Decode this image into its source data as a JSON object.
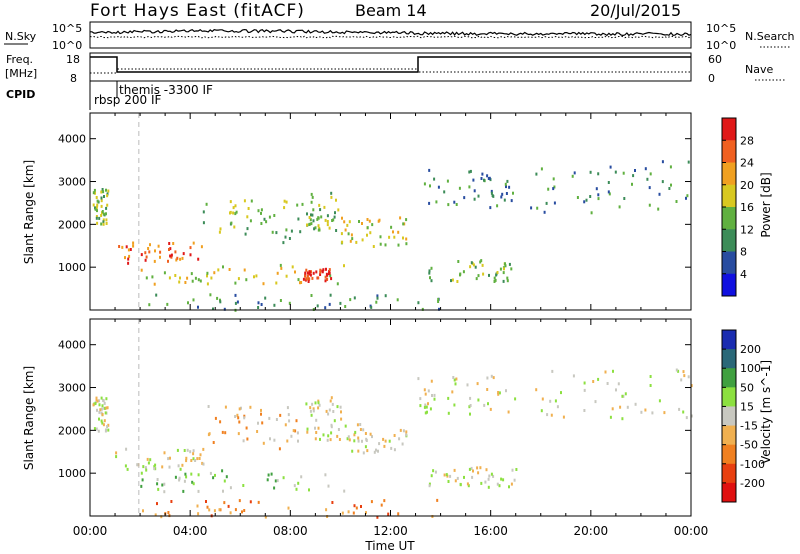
{
  "header": {
    "title": "Fort Hays East (fitACF)",
    "beam": "Beam 14",
    "date": "20/Jul/2015"
  },
  "panels": {
    "noise": {
      "left_label": "N.Sky",
      "right_label": "N.Search",
      "left_ticks": [
        "10^5",
        "10^0"
      ],
      "right_ticks": [
        "10^5",
        "10^0"
      ]
    },
    "freq": {
      "left_label_1": "Freq.",
      "left_label_2": "[MHz]",
      "right_label": "Nave",
      "left_ticks": [
        "18",
        "8"
      ],
      "right_ticks": [
        "60",
        "0"
      ]
    },
    "cpid": {
      "label": "CPID",
      "entries": [
        "rbsp 200 IF",
        "themis -3300 IF"
      ]
    }
  },
  "colorbars": {
    "power": {
      "label": "Power [dB]",
      "ticks": [
        "28",
        "24",
        "20",
        "16",
        "12",
        "8",
        "4"
      ],
      "colors": [
        "#e01818",
        "#f06020",
        "#f0a020",
        "#d8c820",
        "#60b040",
        "#3c8c58",
        "#284ca0",
        "#1010e0"
      ]
    },
    "velocity": {
      "label": "Velocity [m s^-1]",
      "ticks": [
        "200",
        "100",
        "50",
        "15",
        "-15",
        "-50",
        "-100",
        "-200"
      ],
      "colors": [
        "#1a2cb0",
        "#2a6878",
        "#40a040",
        "#8ce040",
        "#c8c8c0",
        "#f0b050",
        "#f08020",
        "#e84010",
        "#e01010"
      ]
    }
  },
  "chart_data": [
    {
      "type": "scatter",
      "name": "power_panel",
      "ylabel": "Slant Range [km]",
      "xlabel": "",
      "xlim": [
        0,
        24
      ],
      "ylim": [
        0,
        4600
      ],
      "yticks": [
        1000,
        2000,
        3000,
        4000
      ],
      "ytick_labels": [
        "1000",
        "2000",
        "3000",
        "4000"
      ],
      "dashed_marker_hour": 1.95,
      "echo_bands": [
        {
          "t0": 0.1,
          "t1": 0.7,
          "r0": 2000,
          "r1": 2850,
          "level": 3
        },
        {
          "t0": 1.0,
          "t1": 4.5,
          "r0": 1100,
          "r1": 1600,
          "level": 6
        },
        {
          "t0": 2.0,
          "t1": 10.2,
          "r0": 600,
          "r1": 1100,
          "level": 4
        },
        {
          "t0": 4.5,
          "t1": 8.5,
          "r0": 1600,
          "r1": 2600,
          "level": 3
        },
        {
          "t0": 8.5,
          "t1": 9.6,
          "r0": 700,
          "r1": 1000,
          "level": 7
        },
        {
          "t0": 8.6,
          "t1": 10.0,
          "r0": 1800,
          "r1": 2800,
          "level": 3
        },
        {
          "t0": 10.0,
          "t1": 12.6,
          "r0": 1500,
          "r1": 2200,
          "level": 4
        },
        {
          "t0": 13.0,
          "t1": 17.0,
          "r0": 2400,
          "r1": 3300,
          "level": 2
        },
        {
          "t0": 13.5,
          "t1": 17.0,
          "r0": 700,
          "r1": 1200,
          "level": 3
        },
        {
          "t0": 17.5,
          "t1": 24.0,
          "r0": 2300,
          "r1": 3500,
          "level": 2
        },
        {
          "t0": 2.0,
          "t1": 14.0,
          "r0": 0,
          "r1": 400,
          "level": 2
        }
      ]
    },
    {
      "type": "scatter",
      "name": "velocity_panel",
      "ylabel": "Slant Range [km]",
      "xlabel": "Time UT",
      "xlim": [
        0,
        24
      ],
      "ylim": [
        0,
        4600
      ],
      "xticks": [
        0,
        4,
        8,
        12,
        16,
        20,
        24
      ],
      "xtick_labels": [
        "00:00",
        "04:00",
        "08:00",
        "12:00",
        "16:00",
        "20:00",
        "00:00"
      ],
      "yticks": [
        1000,
        2000,
        3000,
        4000
      ],
      "ytick_labels": [
        "1000",
        "2000",
        "3000",
        "4000"
      ],
      "dashed_marker_hour": 1.95,
      "echo_bands": [
        {
          "t0": 0.1,
          "t1": 0.7,
          "r0": 2000,
          "r1": 2800,
          "level": 4
        },
        {
          "t0": 1.0,
          "t1": 4.5,
          "r0": 1100,
          "r1": 1600,
          "level": 4
        },
        {
          "t0": 2.0,
          "t1": 10.2,
          "r0": 600,
          "r1": 1100,
          "level": 3
        },
        {
          "t0": 4.5,
          "t1": 8.5,
          "r0": 1600,
          "r1": 2600,
          "level": 5
        },
        {
          "t0": 8.6,
          "t1": 10.0,
          "r0": 1800,
          "r1": 2800,
          "level": 4
        },
        {
          "t0": 10.0,
          "t1": 12.6,
          "r0": 1500,
          "r1": 2200,
          "level": 4
        },
        {
          "t0": 13.0,
          "t1": 17.0,
          "r0": 2400,
          "r1": 3300,
          "level": 4
        },
        {
          "t0": 13.5,
          "t1": 17.0,
          "r0": 700,
          "r1": 1200,
          "level": 4
        },
        {
          "t0": 17.5,
          "t1": 24.0,
          "r0": 2300,
          "r1": 3500,
          "level": 4
        },
        {
          "t0": 2.0,
          "t1": 14.0,
          "r0": 0,
          "r1": 400,
          "level": 6
        }
      ]
    }
  ]
}
